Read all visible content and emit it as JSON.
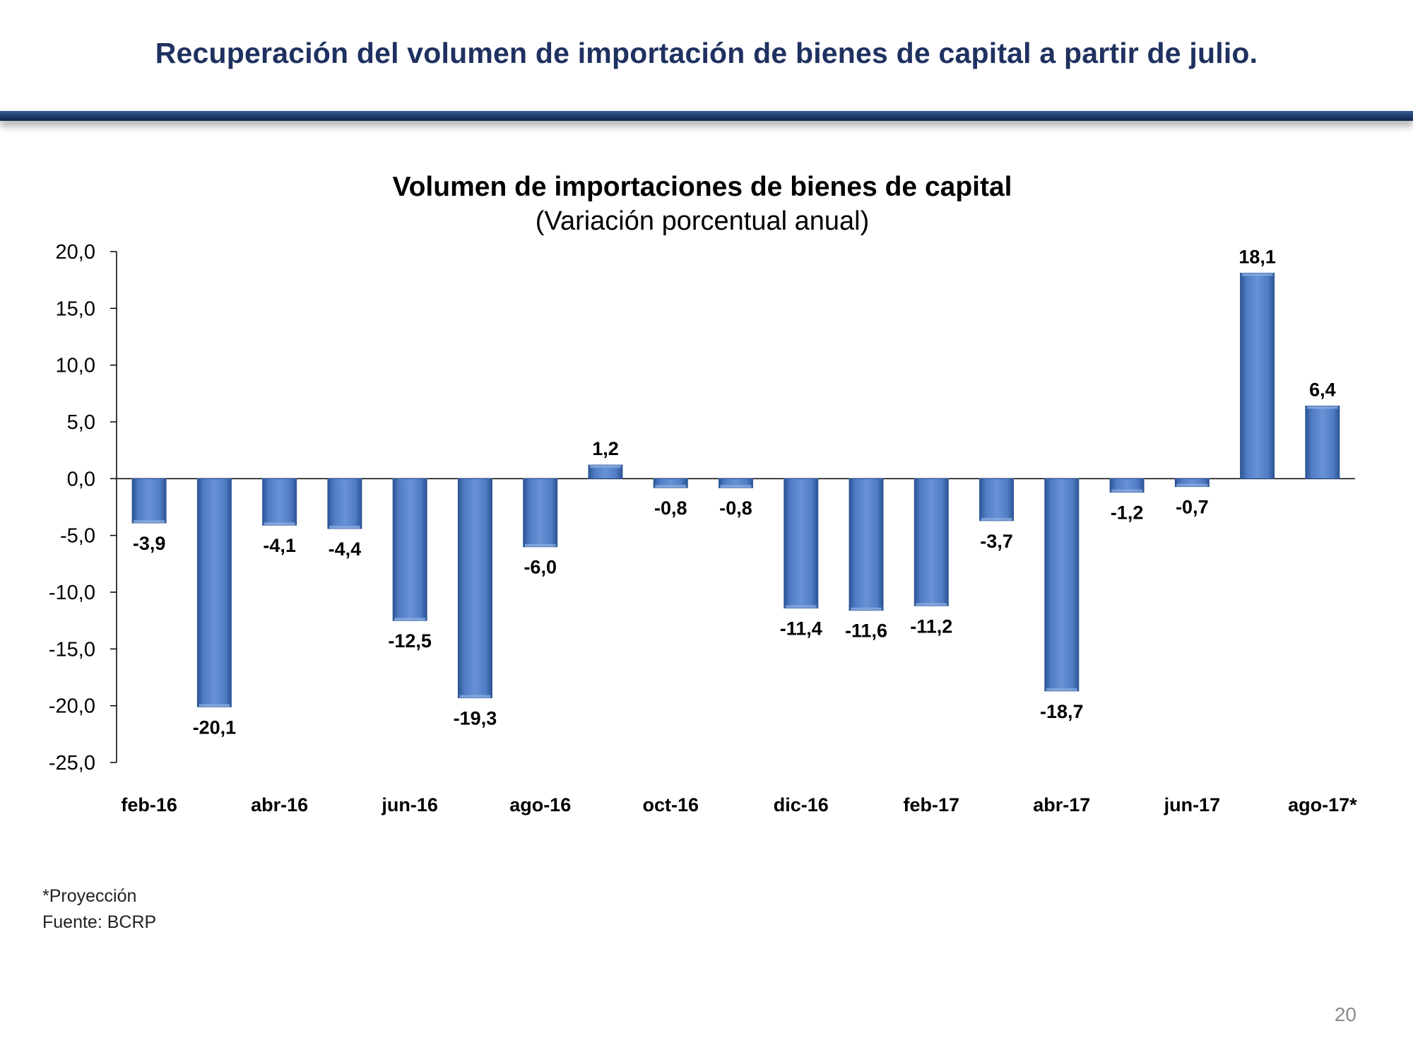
{
  "slide": {
    "title": "Recuperación del volumen de importación de bienes de capital a partir de julio.",
    "page_number": "20"
  },
  "notes": {
    "projection": "*Proyección",
    "source": "Fuente: BCRP"
  },
  "colors": {
    "bar": "#4f7cc4",
    "bar_dark": "#2c5495",
    "bar_light": "#8fb0e3",
    "rule": "#1d3a6b",
    "title": "#1f3160"
  },
  "chart_data": {
    "type": "bar",
    "title": "Volumen de importaciones de bienes de capital",
    "subtitle": "(Variación porcentual anual)",
    "xlabel": "",
    "ylabel": "",
    "ylim": [
      -25,
      20
    ],
    "yticks": [
      20,
      15,
      10,
      5,
      0,
      -5,
      -10,
      -15,
      -20,
      -25
    ],
    "ytick_labels": [
      "20,0",
      "15,0",
      "10,0",
      "5,0",
      "0,0",
      "-5,0",
      "-10,0",
      "-15,0",
      "-20,0",
      "-25,0"
    ],
    "categories": [
      "feb-16",
      "mar-16",
      "abr-16",
      "may-16",
      "jun-16",
      "jul-16",
      "ago-16",
      "sep-16",
      "oct-16",
      "nov-16",
      "dic-16",
      "ene-17",
      "feb-17",
      "mar-17",
      "abr-17",
      "may-17",
      "jun-17",
      "jul-17",
      "ago-17*"
    ],
    "category_labels_shown": [
      "feb-16",
      "",
      "abr-16",
      "",
      "jun-16",
      "",
      "ago-16",
      "",
      "oct-16",
      "",
      "dic-16",
      "",
      "feb-17",
      "",
      "abr-17",
      "",
      "jun-17",
      "",
      "ago-17*"
    ],
    "values": [
      -3.9,
      -20.1,
      -4.1,
      -4.4,
      -12.5,
      -19.3,
      -6.0,
      1.2,
      -0.8,
      -0.8,
      -11.4,
      -11.6,
      -11.2,
      -3.7,
      -18.7,
      -1.2,
      -0.7,
      18.1,
      6.4
    ],
    "value_labels": [
      "-3,9",
      "-20,1",
      "-4,1",
      "-4,4",
      "-12,5",
      "-19,3",
      "-6,0",
      "1,2",
      "-0,8",
      "-0,8",
      "-11,4",
      "-11,6",
      "-11,2",
      "-3,7",
      "-18,7",
      "-1,2",
      "-0,7",
      "18,1",
      "6,4"
    ],
    "grid": false,
    "legend": "none"
  }
}
